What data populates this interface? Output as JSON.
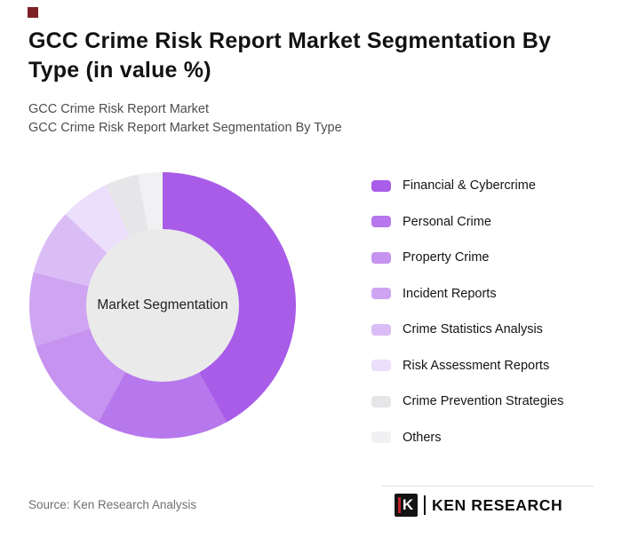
{
  "page": {
    "title": "GCC Crime Risk Report Market Segmentation By Type (in value %)",
    "subtitle1": "GCC Crime Risk Report Market",
    "subtitle2": "GCC Crime Risk Report Market Segmentation By Type",
    "source": "Source: Ken Research Analysis",
    "logo_letter": "K",
    "logo_text": "KEN RESEARCH"
  },
  "colors": {
    "accent_square": "#7d1f24",
    "logo_red": "#c0232c",
    "footer_line": "#dcdcdc"
  },
  "chart_data": {
    "type": "pie",
    "subtype": "donut",
    "title": "GCC Crime Risk Report Market Segmentation By Type (in value %)",
    "center_label": "Market Segmentation",
    "categories": [
      "Financial & Cybercrime",
      "Personal Crime",
      "Property Crime",
      "Incident Reports",
      "Crime Statistics Analysis",
      "Risk Assessment Reports",
      "Crime Prevention Strategies",
      "Others"
    ],
    "values": [
      42,
      16,
      12,
      9,
      8,
      6,
      4,
      3
    ],
    "unit": "%",
    "colors": [
      "#A85CE8",
      "#B678EC",
      "#C693F0",
      "#CFA5F2",
      "#DBBDF6",
      "#EBDFFB",
      "#E6E5E8",
      "#F1F0F2"
    ],
    "center_color": "#EAEAEA",
    "start_angle_deg": 0,
    "direction": "clockwise",
    "legend_position": "right"
  }
}
